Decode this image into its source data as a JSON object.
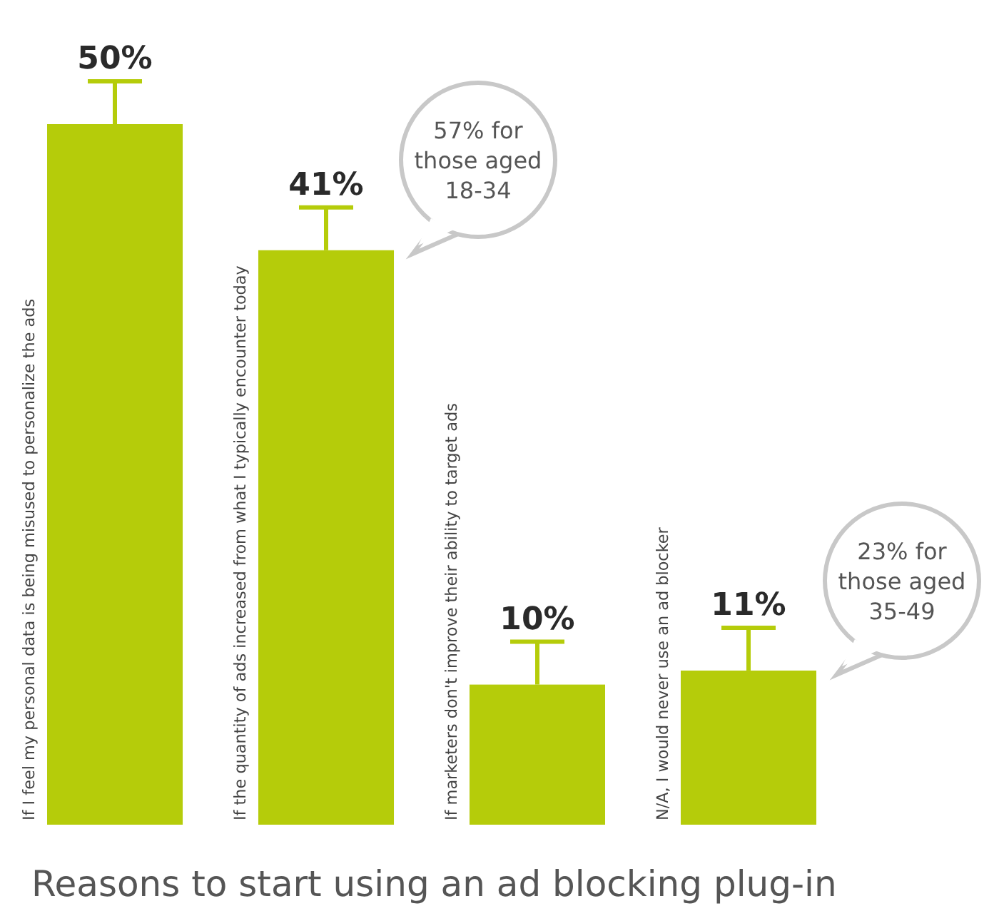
{
  "chart_data": {
    "type": "bar",
    "title": "Reasons to start using an ad blocking plug-in",
    "categories": [
      "If I feel my personal data is being misused to personalize the ads",
      "If the quantity of ads increased from what I typically encounter today",
      "If marketers don't improve their ability to target ads",
      "N/A, I would never use an ad blocker"
    ],
    "values": [
      50,
      41,
      10,
      11
    ],
    "color": "#b5cc0a",
    "value_labels": [
      "50%",
      "41%",
      "10%",
      "11%"
    ],
    "annotations": [
      "57% for those aged 18-34",
      "23% for those aged 35-49"
    ]
  }
}
